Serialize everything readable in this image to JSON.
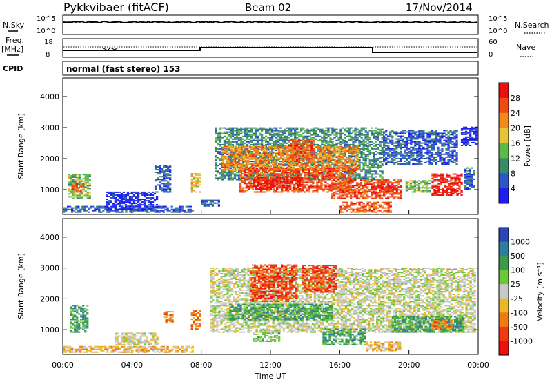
{
  "header": {
    "station": "Pykkvibaer (fitACF)",
    "beam": "Beam 02",
    "date": "17/Nov/2014"
  },
  "nsky_panel": {
    "left_label": "N.Sky",
    "left_ticks": [
      "10^5",
      "10^0"
    ],
    "right_ticks": [
      "10^5",
      "10^0"
    ],
    "right_label": "N.Search"
  },
  "freq_panel": {
    "left_label_line1": "Freq.",
    "left_label_line2": "[MHz]",
    "left_ticks": [
      "18",
      "8"
    ],
    "right_ticks": [
      "60",
      "0"
    ],
    "right_label": "Nave"
  },
  "cpid": {
    "label": "CPID",
    "mode": "normal (fast stereo) 153"
  },
  "chart_data": [
    {
      "type": "heatmap",
      "name": "power",
      "ylabel": "Slant Range [km]",
      "xlabel": "Time UT",
      "x_ticks": [
        "00:00",
        "04:00",
        "08:00",
        "12:00",
        "16:00",
        "20:00",
        "00:00"
      ],
      "y_ticks": [
        "1000",
        "2000",
        "3000",
        "4000"
      ],
      "ylim": [
        200,
        4600
      ],
      "xlim_hours": [
        0,
        24
      ],
      "colorbar": {
        "label": "Power [dB]",
        "ticks": [
          "4",
          "8",
          "12",
          "16",
          "20",
          "24",
          "28"
        ],
        "colors": [
          "#1e1ef0",
          "#2c57c4",
          "#3a8a6a",
          "#5fb84a",
          "#e8c23a",
          "#f08a1e",
          "#ee4a14",
          "#ee1010"
        ]
      },
      "regions": [
        {
          "t0": 0.3,
          "t1": 1.6,
          "r0": 700,
          "r1": 1500,
          "level": 3
        },
        {
          "t0": 0.5,
          "t1": 1.2,
          "r0": 900,
          "r1": 1200,
          "level": 6
        },
        {
          "t0": 0.0,
          "t1": 7.5,
          "r0": 250,
          "r1": 450,
          "level": 1
        },
        {
          "t0": 2.5,
          "t1": 5.5,
          "r0": 350,
          "r1": 900,
          "level": 0
        },
        {
          "t0": 5.3,
          "t1": 6.2,
          "r0": 900,
          "r1": 1800,
          "level": 1
        },
        {
          "t0": 7.4,
          "t1": 7.9,
          "r0": 900,
          "r1": 1500,
          "level": 4
        },
        {
          "t0": 8.0,
          "t1": 9.0,
          "r0": 450,
          "r1": 650,
          "level": 1
        },
        {
          "t0": 8.8,
          "t1": 18.5,
          "r0": 1300,
          "r1": 3000,
          "level": 2
        },
        {
          "t0": 9.2,
          "t1": 17.0,
          "r0": 1600,
          "r1": 2400,
          "level": 5
        },
        {
          "t0": 10.2,
          "t1": 16.8,
          "r0": 900,
          "r1": 1700,
          "level": 6
        },
        {
          "t0": 11.0,
          "t1": 13.8,
          "r0": 1000,
          "r1": 1400,
          "level": 7
        },
        {
          "t0": 13.0,
          "t1": 14.5,
          "r0": 1800,
          "r1": 2600,
          "level": 6
        },
        {
          "t0": 15.5,
          "t1": 19.5,
          "r0": 700,
          "r1": 1300,
          "level": 6
        },
        {
          "t0": 17.8,
          "t1": 19.3,
          "r0": 900,
          "r1": 1100,
          "level": 7
        },
        {
          "t0": 16.0,
          "t1": 19.0,
          "r0": 250,
          "r1": 600,
          "level": 6
        },
        {
          "t0": 18.5,
          "t1": 22.8,
          "r0": 1800,
          "r1": 2900,
          "level": 1
        },
        {
          "t0": 19.8,
          "t1": 21.2,
          "r0": 900,
          "r1": 1300,
          "level": 3
        },
        {
          "t0": 21.3,
          "t1": 23.0,
          "r0": 800,
          "r1": 1500,
          "level": 7
        },
        {
          "t0": 23.2,
          "t1": 23.8,
          "r0": 1000,
          "r1": 1700,
          "level": 1
        },
        {
          "t0": 23.0,
          "t1": 23.9,
          "r0": 2400,
          "r1": 3000,
          "level": 0
        }
      ]
    },
    {
      "type": "heatmap",
      "name": "velocity",
      "ylabel": "Slant Range [km]",
      "xlabel": "Time UT",
      "x_ticks": [
        "00:00",
        "04:00",
        "08:00",
        "12:00",
        "16:00",
        "20:00",
        "00:00"
      ],
      "y_ticks": [
        "1000",
        "2000",
        "3000",
        "4000"
      ],
      "ylim": [
        200,
        4600
      ],
      "xlim_hours": [
        0,
        24
      ],
      "colorbar": {
        "label": "Velocity [m s⁻¹]",
        "ticks": [
          "1000",
          "500",
          "100",
          "25",
          "-25",
          "-100",
          "-500",
          "-1000"
        ],
        "colors": [
          "#2a46b8",
          "#2f7f9a",
          "#3c9a4c",
          "#6cc83a",
          "#c8c8c8",
          "#e8b82a",
          "#f07a14",
          "#ee3a12",
          "#ee1010"
        ]
      },
      "regions": [
        {
          "t0": 0.4,
          "t1": 1.4,
          "r0": 900,
          "r1": 1800,
          "level": 2
        },
        {
          "t0": 0.0,
          "t1": 7.5,
          "r0": 250,
          "r1": 450,
          "level": 5
        },
        {
          "t0": 3.0,
          "t1": 5.5,
          "r0": 500,
          "r1": 900,
          "level": 4
        },
        {
          "t0": 5.8,
          "t1": 6.4,
          "r0": 1200,
          "r1": 1600,
          "level": 6
        },
        {
          "t0": 7.4,
          "t1": 7.9,
          "r0": 1000,
          "r1": 1600,
          "level": 6
        },
        {
          "t0": 8.5,
          "t1": 23.8,
          "r0": 900,
          "r1": 3000,
          "level": 4
        },
        {
          "t0": 9.5,
          "t1": 15.5,
          "r0": 1300,
          "r1": 1800,
          "level": 2
        },
        {
          "t0": 10.8,
          "t1": 13.5,
          "r0": 1900,
          "r1": 3100,
          "level": 7
        },
        {
          "t0": 13.8,
          "t1": 15.8,
          "r0": 2200,
          "r1": 3100,
          "level": 7
        },
        {
          "t0": 11.0,
          "t1": 12.5,
          "r0": 600,
          "r1": 900,
          "level": 3
        },
        {
          "t0": 15.0,
          "t1": 17.5,
          "r0": 500,
          "r1": 1000,
          "level": 2
        },
        {
          "t0": 17.5,
          "t1": 19.5,
          "r0": 300,
          "r1": 600,
          "level": 5
        },
        {
          "t0": 19.0,
          "t1": 23.2,
          "r0": 900,
          "r1": 1400,
          "level": 2
        },
        {
          "t0": 21.3,
          "t1": 22.5,
          "r0": 1000,
          "r1": 1300,
          "level": 6
        }
      ]
    }
  ]
}
